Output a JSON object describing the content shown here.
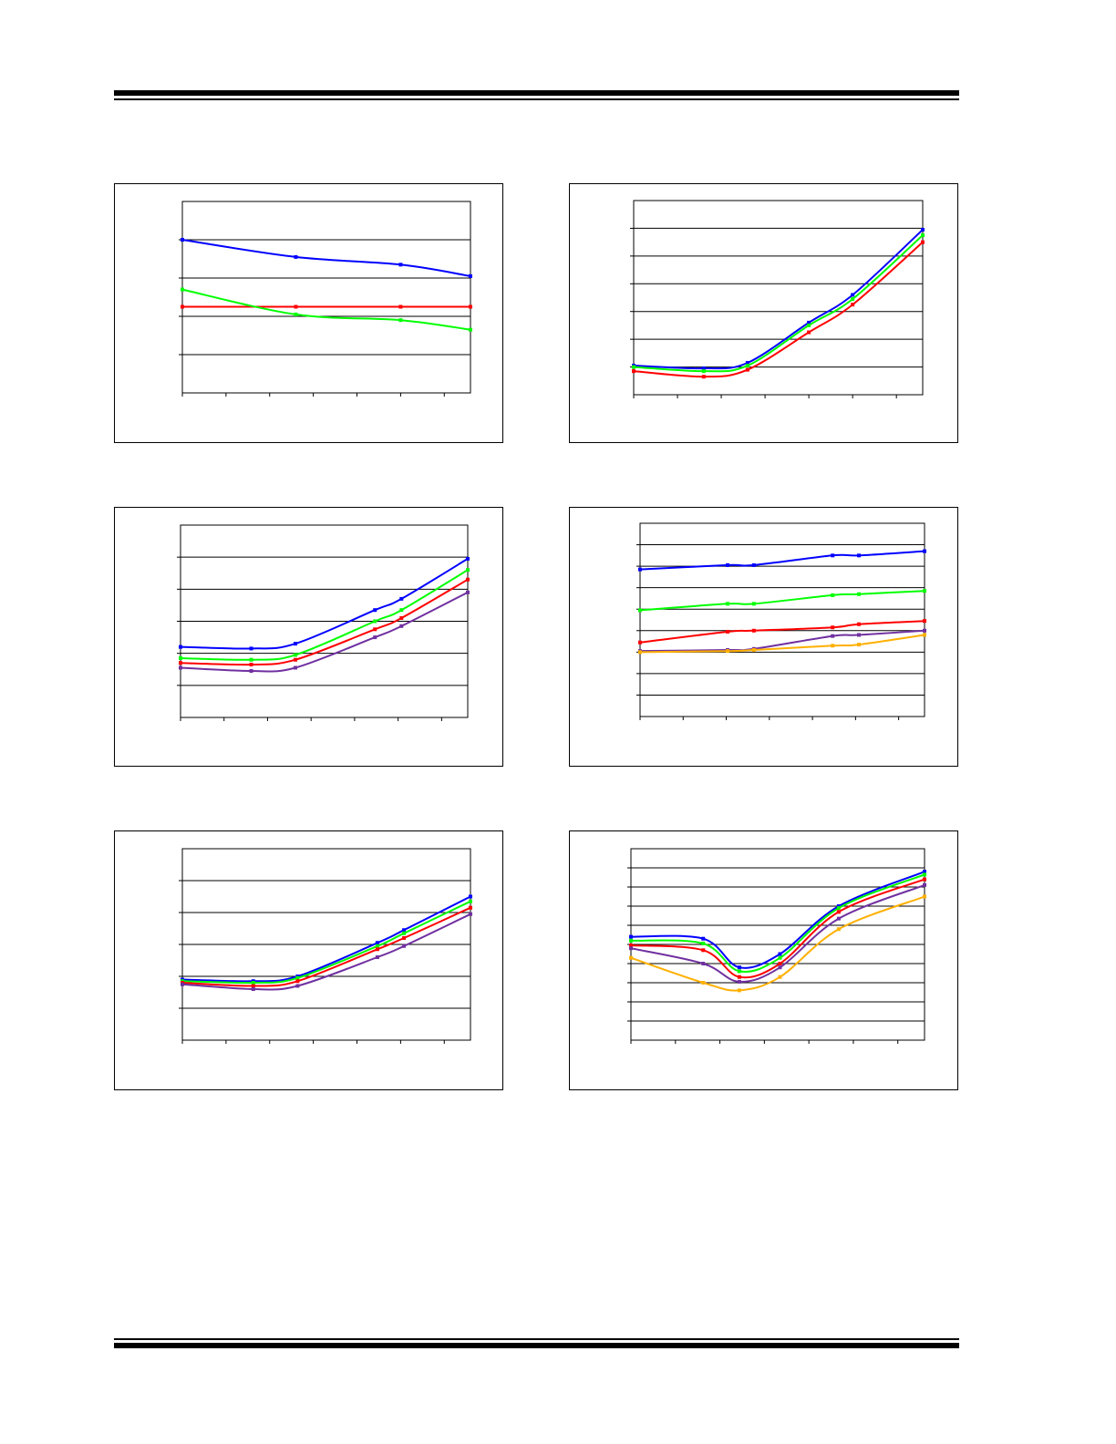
{
  "page": {
    "rule_color": "#000000"
  },
  "colors": {
    "blue": "#0000ff",
    "green": "#00ff00",
    "red": "#ff0000",
    "purple": "#7030a0",
    "orange": "#ffb000"
  },
  "chart_data": [
    {
      "id": "chart-1",
      "type": "line",
      "xlim": [
        0,
        6.6
      ],
      "ylim": [
        0,
        5
      ],
      "series": [
        {
          "color": "#0000ff",
          "x": [
            0,
            2.6,
            5,
            6.6
          ],
          "y": [
            4,
            3.55,
            3.35,
            3.05
          ]
        },
        {
          "color": "#ff0000",
          "x": [
            0,
            2.6,
            5,
            6.6
          ],
          "y": [
            2.25,
            2.25,
            2.25,
            2.25
          ]
        },
        {
          "color": "#00ff00",
          "x": [
            0,
            2.6,
            5,
            6.6
          ],
          "y": [
            2.7,
            2.05,
            1.9,
            1.65
          ]
        }
      ]
    },
    {
      "id": "chart-2",
      "type": "line",
      "xlim": [
        0,
        6.6
      ],
      "ylim": [
        0,
        7
      ],
      "series": [
        {
          "color": "#0000ff",
          "x": [
            0,
            1.6,
            2.6,
            4,
            5,
            6.6
          ],
          "y": [
            1.05,
            0.95,
            1.15,
            2.6,
            3.6,
            5.95
          ]
        },
        {
          "color": "#00ff00",
          "x": [
            0,
            1.6,
            2.6,
            4,
            5,
            6.6
          ],
          "y": [
            1.0,
            0.85,
            1.05,
            2.5,
            3.45,
            5.75
          ]
        },
        {
          "color": "#ff0000",
          "x": [
            0,
            1.6,
            2.6,
            4,
            5,
            6.6
          ],
          "y": [
            0.85,
            0.65,
            0.9,
            2.25,
            3.25,
            5.5
          ]
        }
      ]
    },
    {
      "id": "chart-3",
      "type": "line",
      "xlim": [
        0,
        6.5
      ],
      "ylim": [
        0,
        6
      ],
      "series": [
        {
          "color": "#0000ff",
          "x": [
            0,
            1.6,
            2.6,
            4.4,
            5,
            6.5
          ],
          "y": [
            2.2,
            2.15,
            2.3,
            3.35,
            3.7,
            4.95
          ]
        },
        {
          "color": "#00ff00",
          "x": [
            0,
            1.6,
            2.6,
            4.4,
            5,
            6.5
          ],
          "y": [
            1.85,
            1.8,
            1.95,
            3.0,
            3.35,
            4.6
          ]
        },
        {
          "color": "#ff0000",
          "x": [
            0,
            1.6,
            2.6,
            4.4,
            5,
            6.5
          ],
          "y": [
            1.7,
            1.65,
            1.8,
            2.75,
            3.1,
            4.3
          ]
        },
        {
          "color": "#7030a0",
          "x": [
            0,
            1.6,
            2.6,
            4.4,
            5,
            6.5
          ],
          "y": [
            1.55,
            1.45,
            1.55,
            2.5,
            2.85,
            3.9
          ]
        }
      ]
    },
    {
      "id": "chart-4",
      "type": "line",
      "xlim": [
        0,
        6.5
      ],
      "ylim": [
        0,
        9
      ],
      "series": [
        {
          "color": "#0000ff",
          "x": [
            0,
            2,
            2.6,
            4.4,
            5,
            6.5
          ],
          "y": [
            6.85,
            7.05,
            7.05,
            7.5,
            7.5,
            7.7
          ]
        },
        {
          "color": "#00ff00",
          "x": [
            0,
            2,
            2.6,
            4.4,
            5,
            6.5
          ],
          "y": [
            4.95,
            5.25,
            5.25,
            5.65,
            5.7,
            5.85
          ]
        },
        {
          "color": "#ff0000",
          "x": [
            0,
            2,
            2.6,
            4.4,
            5,
            6.5
          ],
          "y": [
            3.45,
            3.95,
            4.0,
            4.15,
            4.3,
            4.45
          ]
        },
        {
          "color": "#7030a0",
          "x": [
            0,
            2,
            2.6,
            4.4,
            5,
            6.5
          ],
          "y": [
            3.05,
            3.1,
            3.15,
            3.75,
            3.8,
            4.0
          ]
        },
        {
          "color": "#ffb000",
          "x": [
            0,
            2,
            2.6,
            4.4,
            5,
            6.5
          ],
          "y": [
            3.0,
            3.05,
            3.1,
            3.3,
            3.35,
            3.8
          ]
        }
      ]
    },
    {
      "id": "chart-5",
      "type": "line",
      "xlim": [
        0,
        6.5
      ],
      "ylim": [
        0,
        6
      ],
      "series": [
        {
          "color": "#0000ff",
          "x": [
            0,
            1.6,
            2.6,
            4.4,
            5,
            6.5
          ],
          "y": [
            1.9,
            1.85,
            2.0,
            3.05,
            3.45,
            4.5
          ]
        },
        {
          "color": "#00ff00",
          "x": [
            0,
            1.6,
            2.6,
            4.4,
            5,
            6.5
          ],
          "y": [
            1.85,
            1.8,
            1.95,
            2.95,
            3.35,
            4.35
          ]
        },
        {
          "color": "#ff0000",
          "x": [
            0,
            1.6,
            2.6,
            4.4,
            5,
            6.5
          ],
          "y": [
            1.8,
            1.7,
            1.85,
            2.85,
            3.2,
            4.15
          ]
        },
        {
          "color": "#7030a0",
          "x": [
            0,
            1.6,
            2.6,
            4.4,
            5,
            6.5
          ],
          "y": [
            1.75,
            1.6,
            1.7,
            2.6,
            2.95,
            3.95
          ]
        }
      ]
    },
    {
      "id": "chart-6",
      "type": "line",
      "xlim": [
        0,
        6.5
      ],
      "ylim": [
        0,
        10
      ],
      "series": [
        {
          "color": "#0000ff",
          "x": [
            0,
            1.6,
            2.4,
            3.3,
            4.6,
            6.5
          ],
          "y": [
            5.4,
            5.3,
            3.8,
            4.5,
            7.0,
            8.8
          ]
        },
        {
          "color": "#00ff00",
          "x": [
            0,
            1.6,
            2.4,
            3.3,
            4.6,
            6.5
          ],
          "y": [
            5.2,
            5.05,
            3.6,
            4.3,
            6.9,
            8.65
          ]
        },
        {
          "color": "#ff0000",
          "x": [
            0,
            1.6,
            2.4,
            3.3,
            4.6,
            6.5
          ],
          "y": [
            4.95,
            4.7,
            3.3,
            4.0,
            6.7,
            8.4
          ]
        },
        {
          "color": "#7030a0",
          "x": [
            0,
            1.6,
            2.4,
            3.3,
            4.6,
            6.5
          ],
          "y": [
            4.8,
            4.0,
            3.05,
            3.8,
            6.35,
            8.1
          ]
        },
        {
          "color": "#ffb000",
          "x": [
            0,
            1.6,
            2.4,
            3.3,
            4.6,
            6.5
          ],
          "y": [
            4.3,
            3.0,
            2.6,
            3.3,
            5.8,
            7.5
          ]
        }
      ]
    }
  ]
}
